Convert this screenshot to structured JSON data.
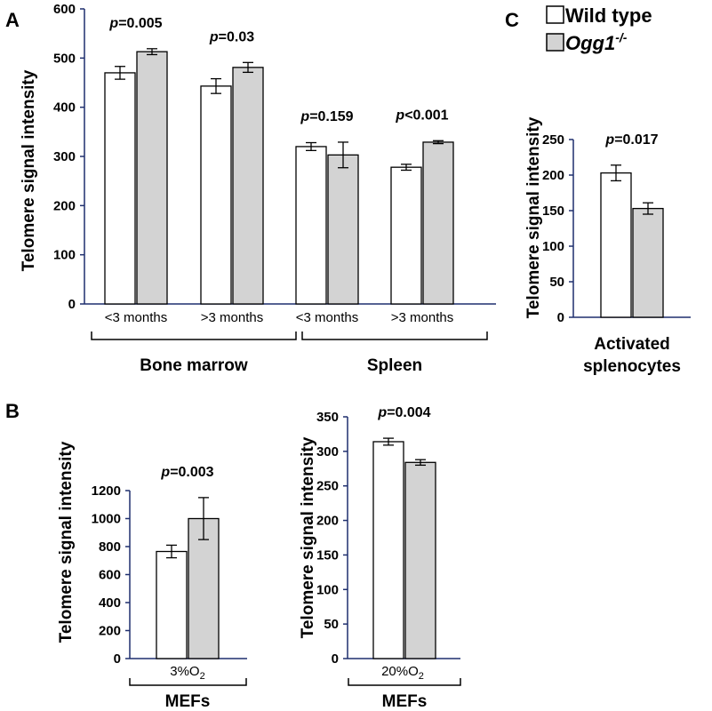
{
  "colors": {
    "wild_type": "#ffffff",
    "ogg1": "#d3d3d3",
    "axis": "#1f2f6e",
    "stroke": "#000000"
  },
  "legend": {
    "wild_type_label": "Wild type",
    "ogg1_label": "Ogg1",
    "ogg1_superscript": "-/-"
  },
  "chart_data": [
    {
      "id": "A",
      "type": "bar",
      "panel_label": "A",
      "ylabel": "Telomere  signal intensity",
      "ylim": [
        0,
        600
      ],
      "yticks": [
        0,
        100,
        200,
        300,
        400,
        500,
        600
      ],
      "categories": [
        "<3 months",
        ">3 months",
        "<3 months",
        ">3 months"
      ],
      "groups": [
        "Bone marrow",
        "Spleen"
      ],
      "p_values": [
        "0.005",
        "0.03",
        "0.159",
        "<0.001"
      ],
      "series": [
        {
          "name": "Wild type",
          "values": [
            470,
            443,
            320,
            278
          ],
          "errors": [
            13,
            15,
            8,
            6
          ]
        },
        {
          "name": "Ogg1-/-",
          "values": [
            513,
            481,
            303,
            329
          ],
          "errors": [
            6,
            10,
            26,
            3
          ]
        }
      ]
    },
    {
      "id": "B1",
      "type": "bar",
      "panel_label": "B",
      "ylabel": "Telomere  signal intensity",
      "ylim": [
        0,
        1200
      ],
      "yticks": [
        0,
        200,
        400,
        600,
        800,
        1000,
        1200
      ],
      "category_prefix": "3%O",
      "category_subscript": "2",
      "group": "MEFs",
      "p_values": [
        "0.003"
      ],
      "series": [
        {
          "name": "Wild type",
          "values": [
            765
          ],
          "errors": [
            45
          ]
        },
        {
          "name": "Ogg1-/-",
          "values": [
            1000
          ],
          "errors": [
            150
          ]
        }
      ]
    },
    {
      "id": "B2",
      "type": "bar",
      "ylabel": "Telomere  signal intensity",
      "ylim": [
        0,
        350
      ],
      "yticks": [
        0,
        50,
        100,
        150,
        200,
        250,
        300,
        350
      ],
      "category_prefix": "20%O",
      "category_subscript": "2",
      "group": "MEFs",
      "p_values": [
        "0.004"
      ],
      "series": [
        {
          "name": "Wild type",
          "values": [
            314
          ],
          "errors": [
            5
          ]
        },
        {
          "name": "Ogg1-/-",
          "values": [
            284
          ],
          "errors": [
            4
          ]
        }
      ]
    },
    {
      "id": "C",
      "type": "bar",
      "panel_label": "C",
      "ylabel": "Telomere  signal intensity",
      "ylim": [
        0,
        250
      ],
      "yticks": [
        0,
        50,
        100,
        150,
        200,
        250
      ],
      "group_lines": [
        "Activated",
        "splenocytes"
      ],
      "p_values": [
        "0.017"
      ],
      "series": [
        {
          "name": "Wild type",
          "values": [
            203
          ],
          "errors": [
            11
          ]
        },
        {
          "name": "Ogg1-/-",
          "values": [
            153
          ],
          "errors": [
            8
          ]
        }
      ]
    }
  ]
}
